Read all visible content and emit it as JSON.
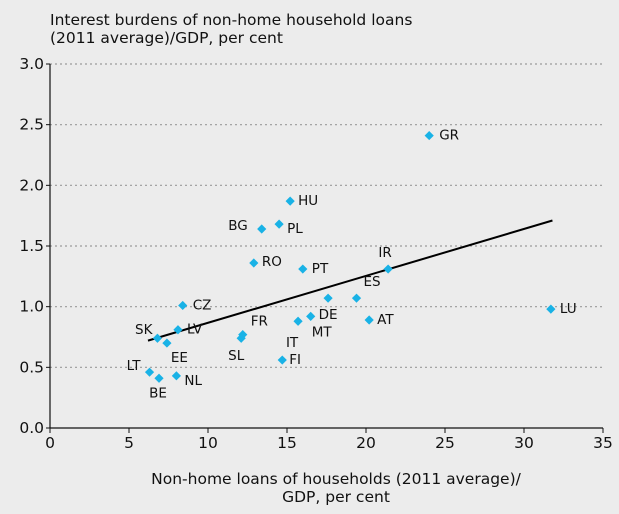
{
  "chart_data": {
    "type": "scatter",
    "title": "Interest burdens of non-home household loans\n(2011 average)/GDP, per cent",
    "xlabel": "Non-home loans of households (2011 average)/\nGDP, per cent",
    "ylabel": "",
    "xlim": [
      0,
      35
    ],
    "ylim": [
      0,
      3.0
    ],
    "xticks": [
      "0",
      "5",
      "10",
      "15",
      "20",
      "25",
      "30",
      "35"
    ],
    "yticks": [
      "0.0",
      "0.5",
      "1.0",
      "1.5",
      "2.0",
      "2.5",
      "3.0"
    ],
    "grid": "horizontal-dotted",
    "point_color": "#19b2e6",
    "points": [
      {
        "label": "GR",
        "x": 24.0,
        "y": 2.41
      },
      {
        "label": "HU",
        "x": 15.2,
        "y": 1.87
      },
      {
        "label": "BG",
        "x": 13.4,
        "y": 1.64
      },
      {
        "label": "PL",
        "x": 14.5,
        "y": 1.68
      },
      {
        "label": "RO",
        "x": 12.9,
        "y": 1.36
      },
      {
        "label": "PT",
        "x": 16.0,
        "y": 1.31
      },
      {
        "label": "IR",
        "x": 21.4,
        "y": 1.31
      },
      {
        "label": "CZ",
        "x": 8.4,
        "y": 1.01
      },
      {
        "label": "ES",
        "x": 19.4,
        "y": 1.07
      },
      {
        "label": "DE",
        "x": 17.6,
        "y": 1.07
      },
      {
        "label": "LU",
        "x": 31.7,
        "y": 0.98
      },
      {
        "label": "SK",
        "x": 6.8,
        "y": 0.74
      },
      {
        "label": "LV",
        "x": 8.1,
        "y": 0.81
      },
      {
        "label": "FR",
        "x": 12.2,
        "y": 0.77
      },
      {
        "label": "SL",
        "x": 12.1,
        "y": 0.74
      },
      {
        "label": "MT",
        "x": 16.5,
        "y": 0.92
      },
      {
        "label": "IT",
        "x": 15.7,
        "y": 0.88
      },
      {
        "label": "AT",
        "x": 20.2,
        "y": 0.89
      },
      {
        "label": "EE",
        "x": 7.4,
        "y": 0.7
      },
      {
        "label": "LT",
        "x": 6.3,
        "y": 0.46
      },
      {
        "label": "BE",
        "x": 6.9,
        "y": 0.41
      },
      {
        "label": "NL",
        "x": 8.0,
        "y": 0.43
      },
      {
        "label": "FI",
        "x": 14.7,
        "y": 0.56
      }
    ],
    "trendline": {
      "x": [
        6.2,
        31.8
      ],
      "y": [
        0.72,
        1.71
      ]
    }
  }
}
